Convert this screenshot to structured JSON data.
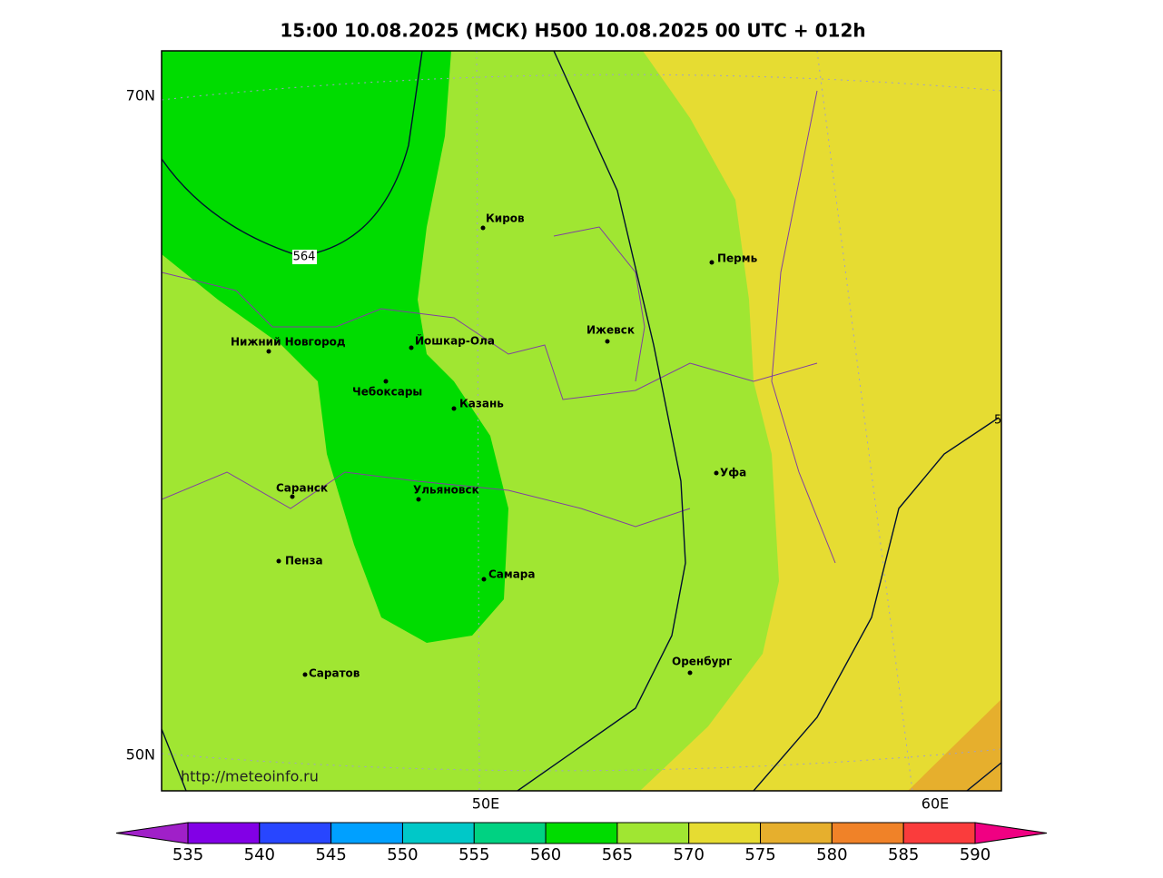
{
  "title": "15:00 10.08.2025 (МСК) H500  10.08.2025 00 UTC + 012h",
  "map": {
    "lat_labels": [
      "70N",
      "50N"
    ],
    "lon_labels": [
      "50E",
      "60E"
    ],
    "contour_labels": [
      "564",
      "5"
    ],
    "url": "http://meteoinfo.ru",
    "cities": [
      "Киров",
      "Пермь",
      "Нижний Новгород",
      "Йошкар-Ола",
      "Ижевск",
      "Чебоксары",
      "Казань",
      "Уфа",
      "Саранск",
      "Ульяновск",
      "Пенза",
      "Самара",
      "Оренбург",
      "Саратов"
    ]
  },
  "colorbar": {
    "ticks": [
      535,
      540,
      545,
      550,
      555,
      560,
      565,
      570,
      575,
      580,
      585,
      590
    ],
    "colors": [
      "#a020c8",
      "#8200e6",
      "#2846ff",
      "#00a0ff",
      "#00c8c8",
      "#00d282",
      "#00dc00",
      "#a0e632",
      "#e6dc32",
      "#e6af2d",
      "#f08228",
      "#fa3c3c",
      "#f00082"
    ]
  }
}
